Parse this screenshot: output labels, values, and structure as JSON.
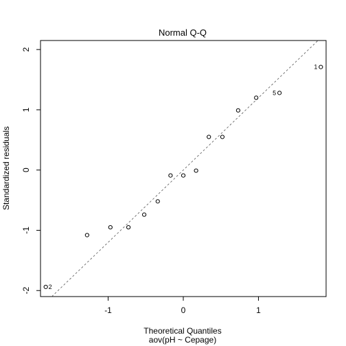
{
  "chart_data": {
    "type": "scatter",
    "title": "Normal Q-Q",
    "xlabel": "Theoretical Quantiles",
    "subtitle": "aov(pH ~ Cepage)",
    "ylabel": "Standardized residuals",
    "xlim": [
      -1.9,
      1.9
    ],
    "ylim": [
      -2.1,
      2.15
    ],
    "x_ticks": [
      -1,
      0,
      1
    ],
    "y_ticks": [
      -2,
      -1,
      0,
      1,
      2
    ],
    "x_tick_labels": [
      "-1",
      "0",
      "1"
    ],
    "y_tick_labels": [
      "-2",
      "-1",
      "0",
      "1",
      "2"
    ],
    "points": [
      {
        "x": -1.83,
        "y": -1.94,
        "label": "2"
      },
      {
        "x": -1.28,
        "y": -1.08
      },
      {
        "x": -0.97,
        "y": -0.95
      },
      {
        "x": -0.73,
        "y": -0.95
      },
      {
        "x": -0.52,
        "y": -0.74
      },
      {
        "x": -0.34,
        "y": -0.52
      },
      {
        "x": -0.17,
        "y": -0.09
      },
      {
        "x": 0.0,
        "y": -0.09
      },
      {
        "x": 0.17,
        "y": -0.01
      },
      {
        "x": 0.34,
        "y": 0.55
      },
      {
        "x": 0.52,
        "y": 0.55
      },
      {
        "x": 0.73,
        "y": 0.99
      },
      {
        "x": 0.97,
        "y": 1.2
      },
      {
        "x": 1.28,
        "y": 1.28,
        "label": "5"
      },
      {
        "x": 1.83,
        "y": 1.71,
        "label": "1"
      }
    ],
    "reference_line": {
      "intercept": 0.0,
      "slope": 1.2
    },
    "grid": false,
    "legend": "none"
  }
}
